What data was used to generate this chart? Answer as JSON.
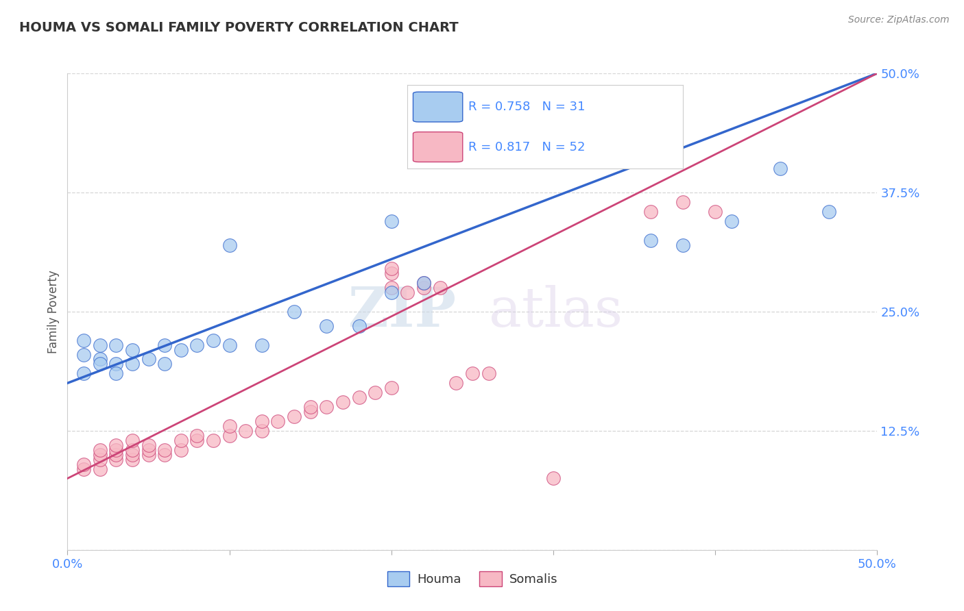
{
  "title": "HOUMA VS SOMALI FAMILY POVERTY CORRELATION CHART",
  "source": "Source: ZipAtlas.com",
  "ylabel_label": "Family Poverty",
  "xlim": [
    0.0,
    0.5
  ],
  "ylim": [
    0.0,
    0.5
  ],
  "xticks": [
    0.0,
    0.1,
    0.2,
    0.3,
    0.4,
    0.5
  ],
  "yticks": [
    0.0,
    0.125,
    0.25,
    0.375,
    0.5
  ],
  "ytick_labels": [
    "",
    "12.5%",
    "25.0%",
    "37.5%",
    "50.0%"
  ],
  "xtick_labels": [
    "0.0%",
    "",
    "",
    "",
    "",
    "50.0%"
  ],
  "houma_color": "#a8ccf0",
  "somali_color": "#f7b8c4",
  "houma_line_color": "#3366cc",
  "somali_line_color": "#cc4477",
  "houma_R": 0.758,
  "houma_N": 31,
  "somali_R": 0.817,
  "somali_N": 52,
  "watermark_zip": "ZIP",
  "watermark_atlas": "atlas",
  "background_color": "#ffffff",
  "grid_color": "#cccccc",
  "houma_points": [
    [
      0.01,
      0.22
    ],
    [
      0.02,
      0.215
    ],
    [
      0.01,
      0.205
    ],
    [
      0.02,
      0.2
    ],
    [
      0.03,
      0.215
    ],
    [
      0.04,
      0.21
    ],
    [
      0.02,
      0.195
    ],
    [
      0.03,
      0.195
    ],
    [
      0.01,
      0.185
    ],
    [
      0.04,
      0.195
    ],
    [
      0.03,
      0.185
    ],
    [
      0.05,
      0.2
    ],
    [
      0.06,
      0.215
    ],
    [
      0.07,
      0.21
    ],
    [
      0.08,
      0.215
    ],
    [
      0.06,
      0.195
    ],
    [
      0.09,
      0.22
    ],
    [
      0.1,
      0.215
    ],
    [
      0.12,
      0.215
    ],
    [
      0.14,
      0.25
    ],
    [
      0.16,
      0.235
    ],
    [
      0.18,
      0.235
    ],
    [
      0.2,
      0.27
    ],
    [
      0.22,
      0.28
    ],
    [
      0.1,
      0.32
    ],
    [
      0.2,
      0.345
    ],
    [
      0.36,
      0.325
    ],
    [
      0.38,
      0.32
    ],
    [
      0.41,
      0.345
    ],
    [
      0.44,
      0.4
    ],
    [
      0.47,
      0.355
    ]
  ],
  "somali_points": [
    [
      0.01,
      0.085
    ],
    [
      0.01,
      0.09
    ],
    [
      0.02,
      0.085
    ],
    [
      0.02,
      0.095
    ],
    [
      0.02,
      0.1
    ],
    [
      0.02,
      0.105
    ],
    [
      0.03,
      0.095
    ],
    [
      0.03,
      0.1
    ],
    [
      0.03,
      0.105
    ],
    [
      0.03,
      0.11
    ],
    [
      0.04,
      0.095
    ],
    [
      0.04,
      0.1
    ],
    [
      0.04,
      0.105
    ],
    [
      0.04,
      0.115
    ],
    [
      0.05,
      0.1
    ],
    [
      0.05,
      0.105
    ],
    [
      0.05,
      0.11
    ],
    [
      0.06,
      0.1
    ],
    [
      0.06,
      0.105
    ],
    [
      0.07,
      0.105
    ],
    [
      0.07,
      0.115
    ],
    [
      0.08,
      0.115
    ],
    [
      0.08,
      0.12
    ],
    [
      0.09,
      0.115
    ],
    [
      0.1,
      0.12
    ],
    [
      0.1,
      0.13
    ],
    [
      0.11,
      0.125
    ],
    [
      0.12,
      0.125
    ],
    [
      0.12,
      0.135
    ],
    [
      0.13,
      0.135
    ],
    [
      0.14,
      0.14
    ],
    [
      0.15,
      0.145
    ],
    [
      0.15,
      0.15
    ],
    [
      0.16,
      0.15
    ],
    [
      0.17,
      0.155
    ],
    [
      0.18,
      0.16
    ],
    [
      0.19,
      0.165
    ],
    [
      0.2,
      0.17
    ],
    [
      0.2,
      0.275
    ],
    [
      0.21,
      0.27
    ],
    [
      0.22,
      0.275
    ],
    [
      0.22,
      0.28
    ],
    [
      0.23,
      0.275
    ],
    [
      0.24,
      0.175
    ],
    [
      0.25,
      0.185
    ],
    [
      0.26,
      0.185
    ],
    [
      0.2,
      0.29
    ],
    [
      0.2,
      0.295
    ],
    [
      0.3,
      0.075
    ],
    [
      0.36,
      0.355
    ],
    [
      0.38,
      0.365
    ],
    [
      0.4,
      0.355
    ]
  ]
}
